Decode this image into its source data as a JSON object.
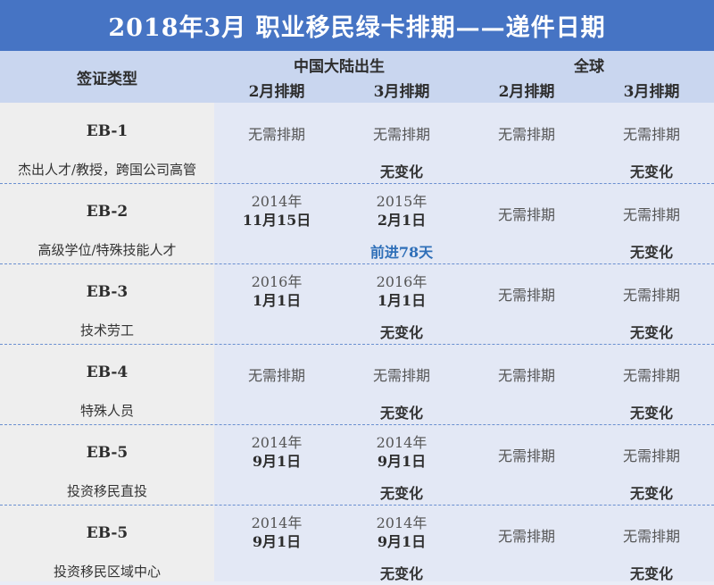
{
  "title": "2018年3月  职业移民绿卡排期——递件日期",
  "header": {
    "visa_type": "签证类型",
    "china": "中国大陆出生",
    "global": "全球",
    "feb": "2月排期",
    "mar": "3月排期"
  },
  "rows": [
    {
      "name": "EB-1",
      "desc": "杰出人才/教授，跨国公司高管",
      "china_feb": {
        "l1": "无需排期",
        "l2": ""
      },
      "china_mar": {
        "l1": "无需排期",
        "l2": ""
      },
      "global_feb": {
        "l1": "无需排期",
        "l2": ""
      },
      "global_mar": {
        "l1": "无需排期",
        "l2": ""
      },
      "china_change": "无变化",
      "global_change": "无变化"
    },
    {
      "name": "EB-2",
      "desc": "高级学位/特殊技能人才",
      "china_feb": {
        "l1": "2014年",
        "l2": "11月15日"
      },
      "china_mar": {
        "l1": "2015年",
        "l2": "2月1日"
      },
      "global_feb": {
        "l1": "无需排期",
        "l2": ""
      },
      "global_mar": {
        "l1": "无需排期",
        "l2": ""
      },
      "china_change": "前进78天",
      "global_change": "无变化"
    },
    {
      "name": "EB-3",
      "desc": "技术劳工",
      "china_feb": {
        "l1": "2016年",
        "l2": "1月1日"
      },
      "china_mar": {
        "l1": "2016年",
        "l2": "1月1日"
      },
      "global_feb": {
        "l1": "无需排期",
        "l2": ""
      },
      "global_mar": {
        "l1": "无需排期",
        "l2": ""
      },
      "china_change": "无变化",
      "global_change": "无变化"
    },
    {
      "name": "EB-4",
      "desc": "特殊人员",
      "china_feb": {
        "l1": "无需排期",
        "l2": ""
      },
      "china_mar": {
        "l1": "无需排期",
        "l2": ""
      },
      "global_feb": {
        "l1": "无需排期",
        "l2": ""
      },
      "global_mar": {
        "l1": "无需排期",
        "l2": ""
      },
      "china_change": "无变化",
      "global_change": "无变化"
    },
    {
      "name": "EB-5",
      "desc": "投资移民直投",
      "china_feb": {
        "l1": "2014年",
        "l2": "9月1日"
      },
      "china_mar": {
        "l1": "2014年",
        "l2": "9月1日"
      },
      "global_feb": {
        "l1": "无需排期",
        "l2": ""
      },
      "global_mar": {
        "l1": "无需排期",
        "l2": ""
      },
      "china_change": "无变化",
      "global_change": "无变化"
    },
    {
      "name": "EB-5",
      "desc": "投资移民区域中心",
      "china_feb": {
        "l1": "2014年",
        "l2": "9月1日"
      },
      "china_mar": {
        "l1": "2014年",
        "l2": "9月1日"
      },
      "global_feb": {
        "l1": "无需排期",
        "l2": ""
      },
      "global_mar": {
        "l1": "无需排期",
        "l2": ""
      },
      "china_change": "无变化",
      "global_change": "无变化"
    }
  ]
}
